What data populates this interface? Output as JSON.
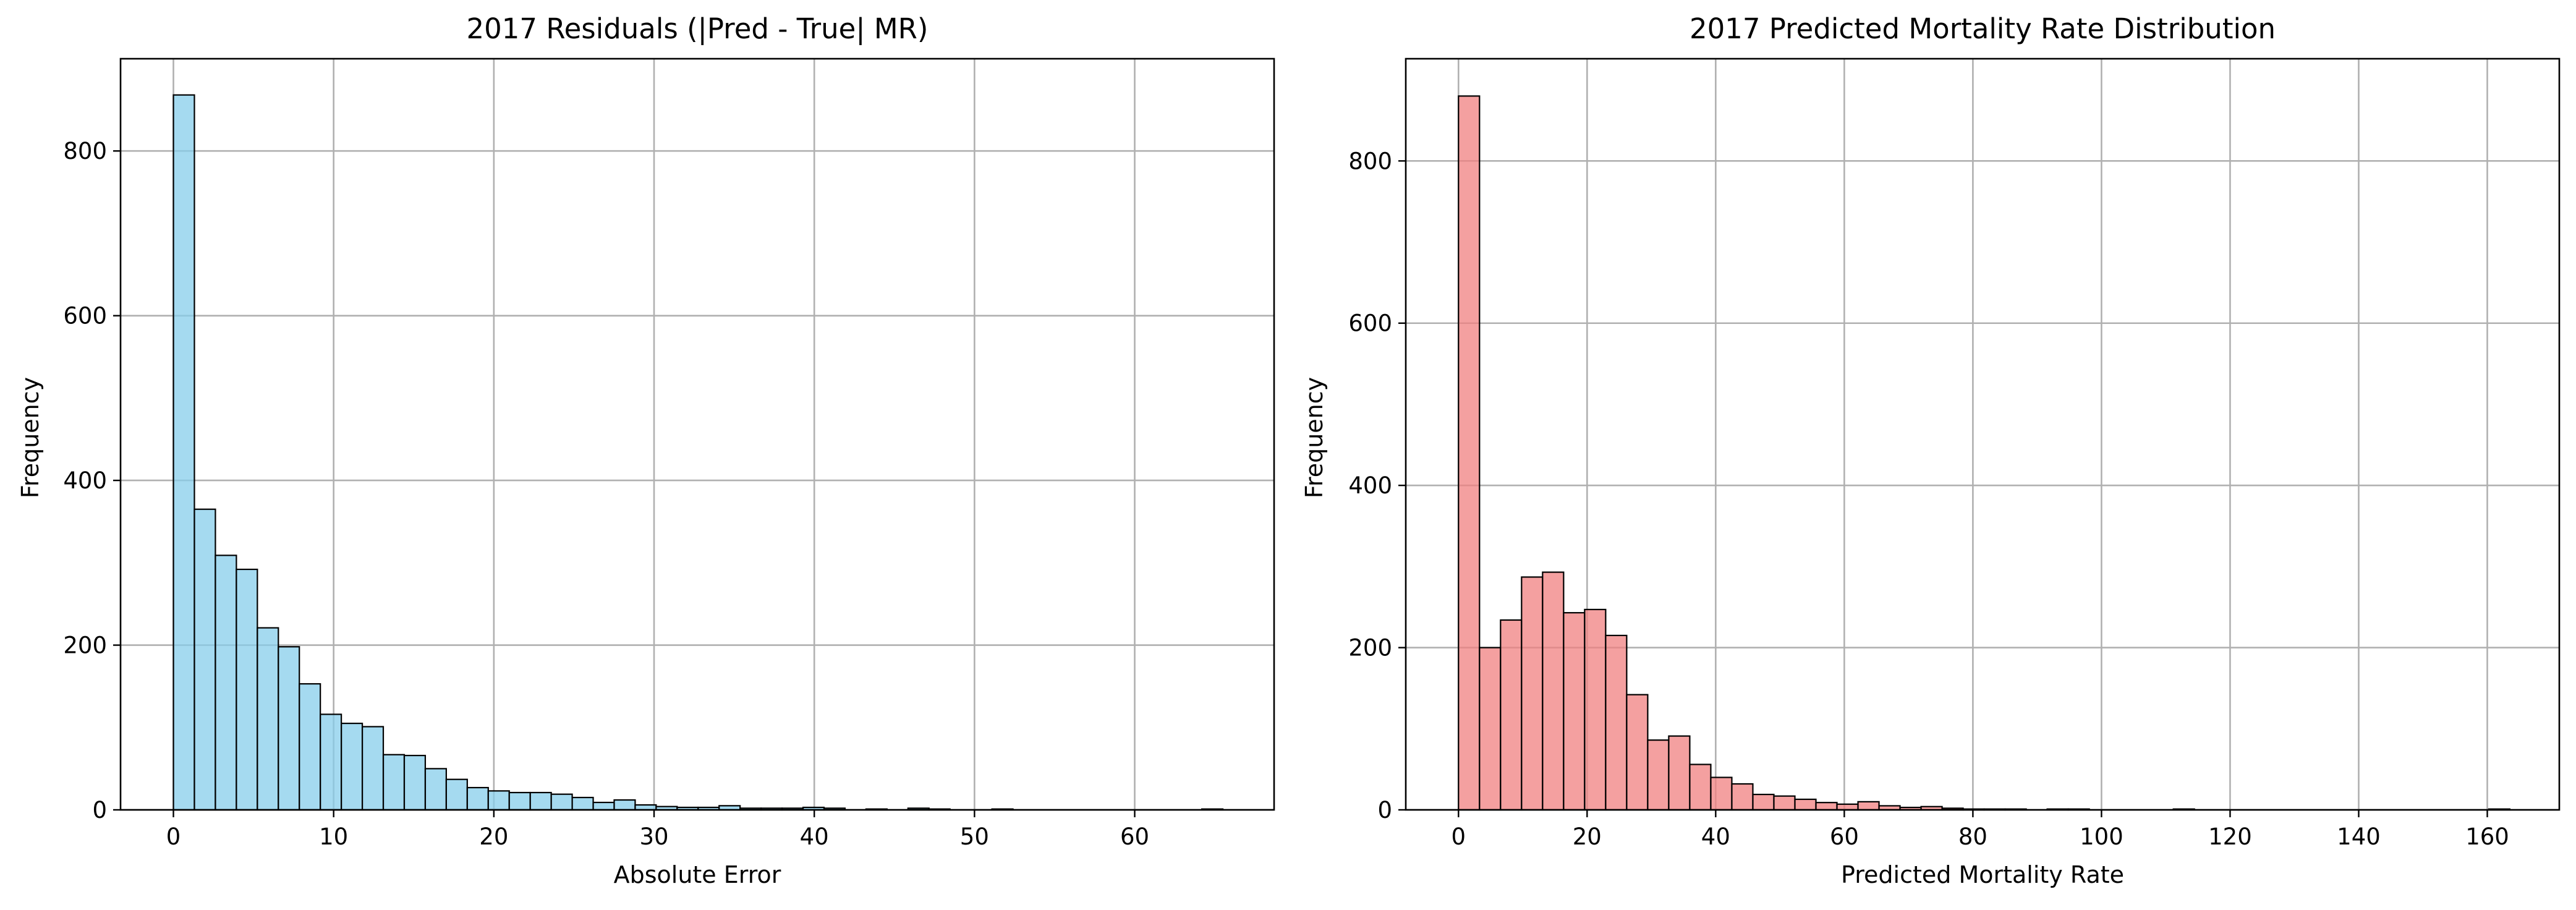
{
  "chart_data": [
    {
      "type": "bar",
      "title": "2017 Residuals (|Pred - True| MR)",
      "xlabel": "Absolute Error",
      "ylabel": "Frequency",
      "xlim": [
        -3.3,
        68.7
      ],
      "ylim": [
        0,
        912
      ],
      "xticks": [
        0,
        10,
        20,
        30,
        40,
        50,
        60
      ],
      "yticks": [
        0,
        200,
        400,
        600,
        800
      ],
      "grid": true,
      "bin_start": 0,
      "bin_width": 1.31,
      "color": "#87CEEB",
      "edge_color": "#000000",
      "values": [
        868,
        365,
        309,
        292,
        221,
        198,
        153,
        116,
        105,
        101,
        67,
        66,
        50,
        37,
        27,
        23,
        21,
        21,
        19,
        15,
        9,
        12,
        6,
        4,
        3,
        3,
        5,
        2,
        2,
        2,
        3,
        2,
        0,
        1,
        0,
        2,
        1,
        0,
        0,
        1,
        0,
        0,
        0,
        0,
        0,
        0,
        0,
        0,
        0,
        1
      ]
    },
    {
      "type": "bar",
      "title": "2017 Predicted Mortality Rate Distribution",
      "xlabel": "Predicted Mortality Rate",
      "ylabel": "Frequency",
      "xlim": [
        -8.2,
        171.2
      ],
      "ylim": [
        0,
        926
      ],
      "xticks": [
        0,
        20,
        40,
        60,
        80,
        100,
        120,
        140,
        160
      ],
      "yticks": [
        0,
        200,
        400,
        600,
        800
      ],
      "grid": true,
      "bin_start": 0,
      "bin_width": 3.27,
      "color": "#F08080",
      "edge_color": "#000000",
      "values": [
        880,
        200,
        234,
        287,
        293,
        243,
        247,
        215,
        142,
        86,
        91,
        56,
        40,
        32,
        19,
        17,
        13,
        9,
        7,
        10,
        5,
        3,
        4,
        2,
        1,
        1,
        1,
        0,
        1,
        1,
        0,
        0,
        0,
        0,
        1,
        0,
        0,
        0,
        0,
        0,
        0,
        0,
        0,
        0,
        0,
        0,
        0,
        0,
        0,
        1
      ]
    }
  ]
}
